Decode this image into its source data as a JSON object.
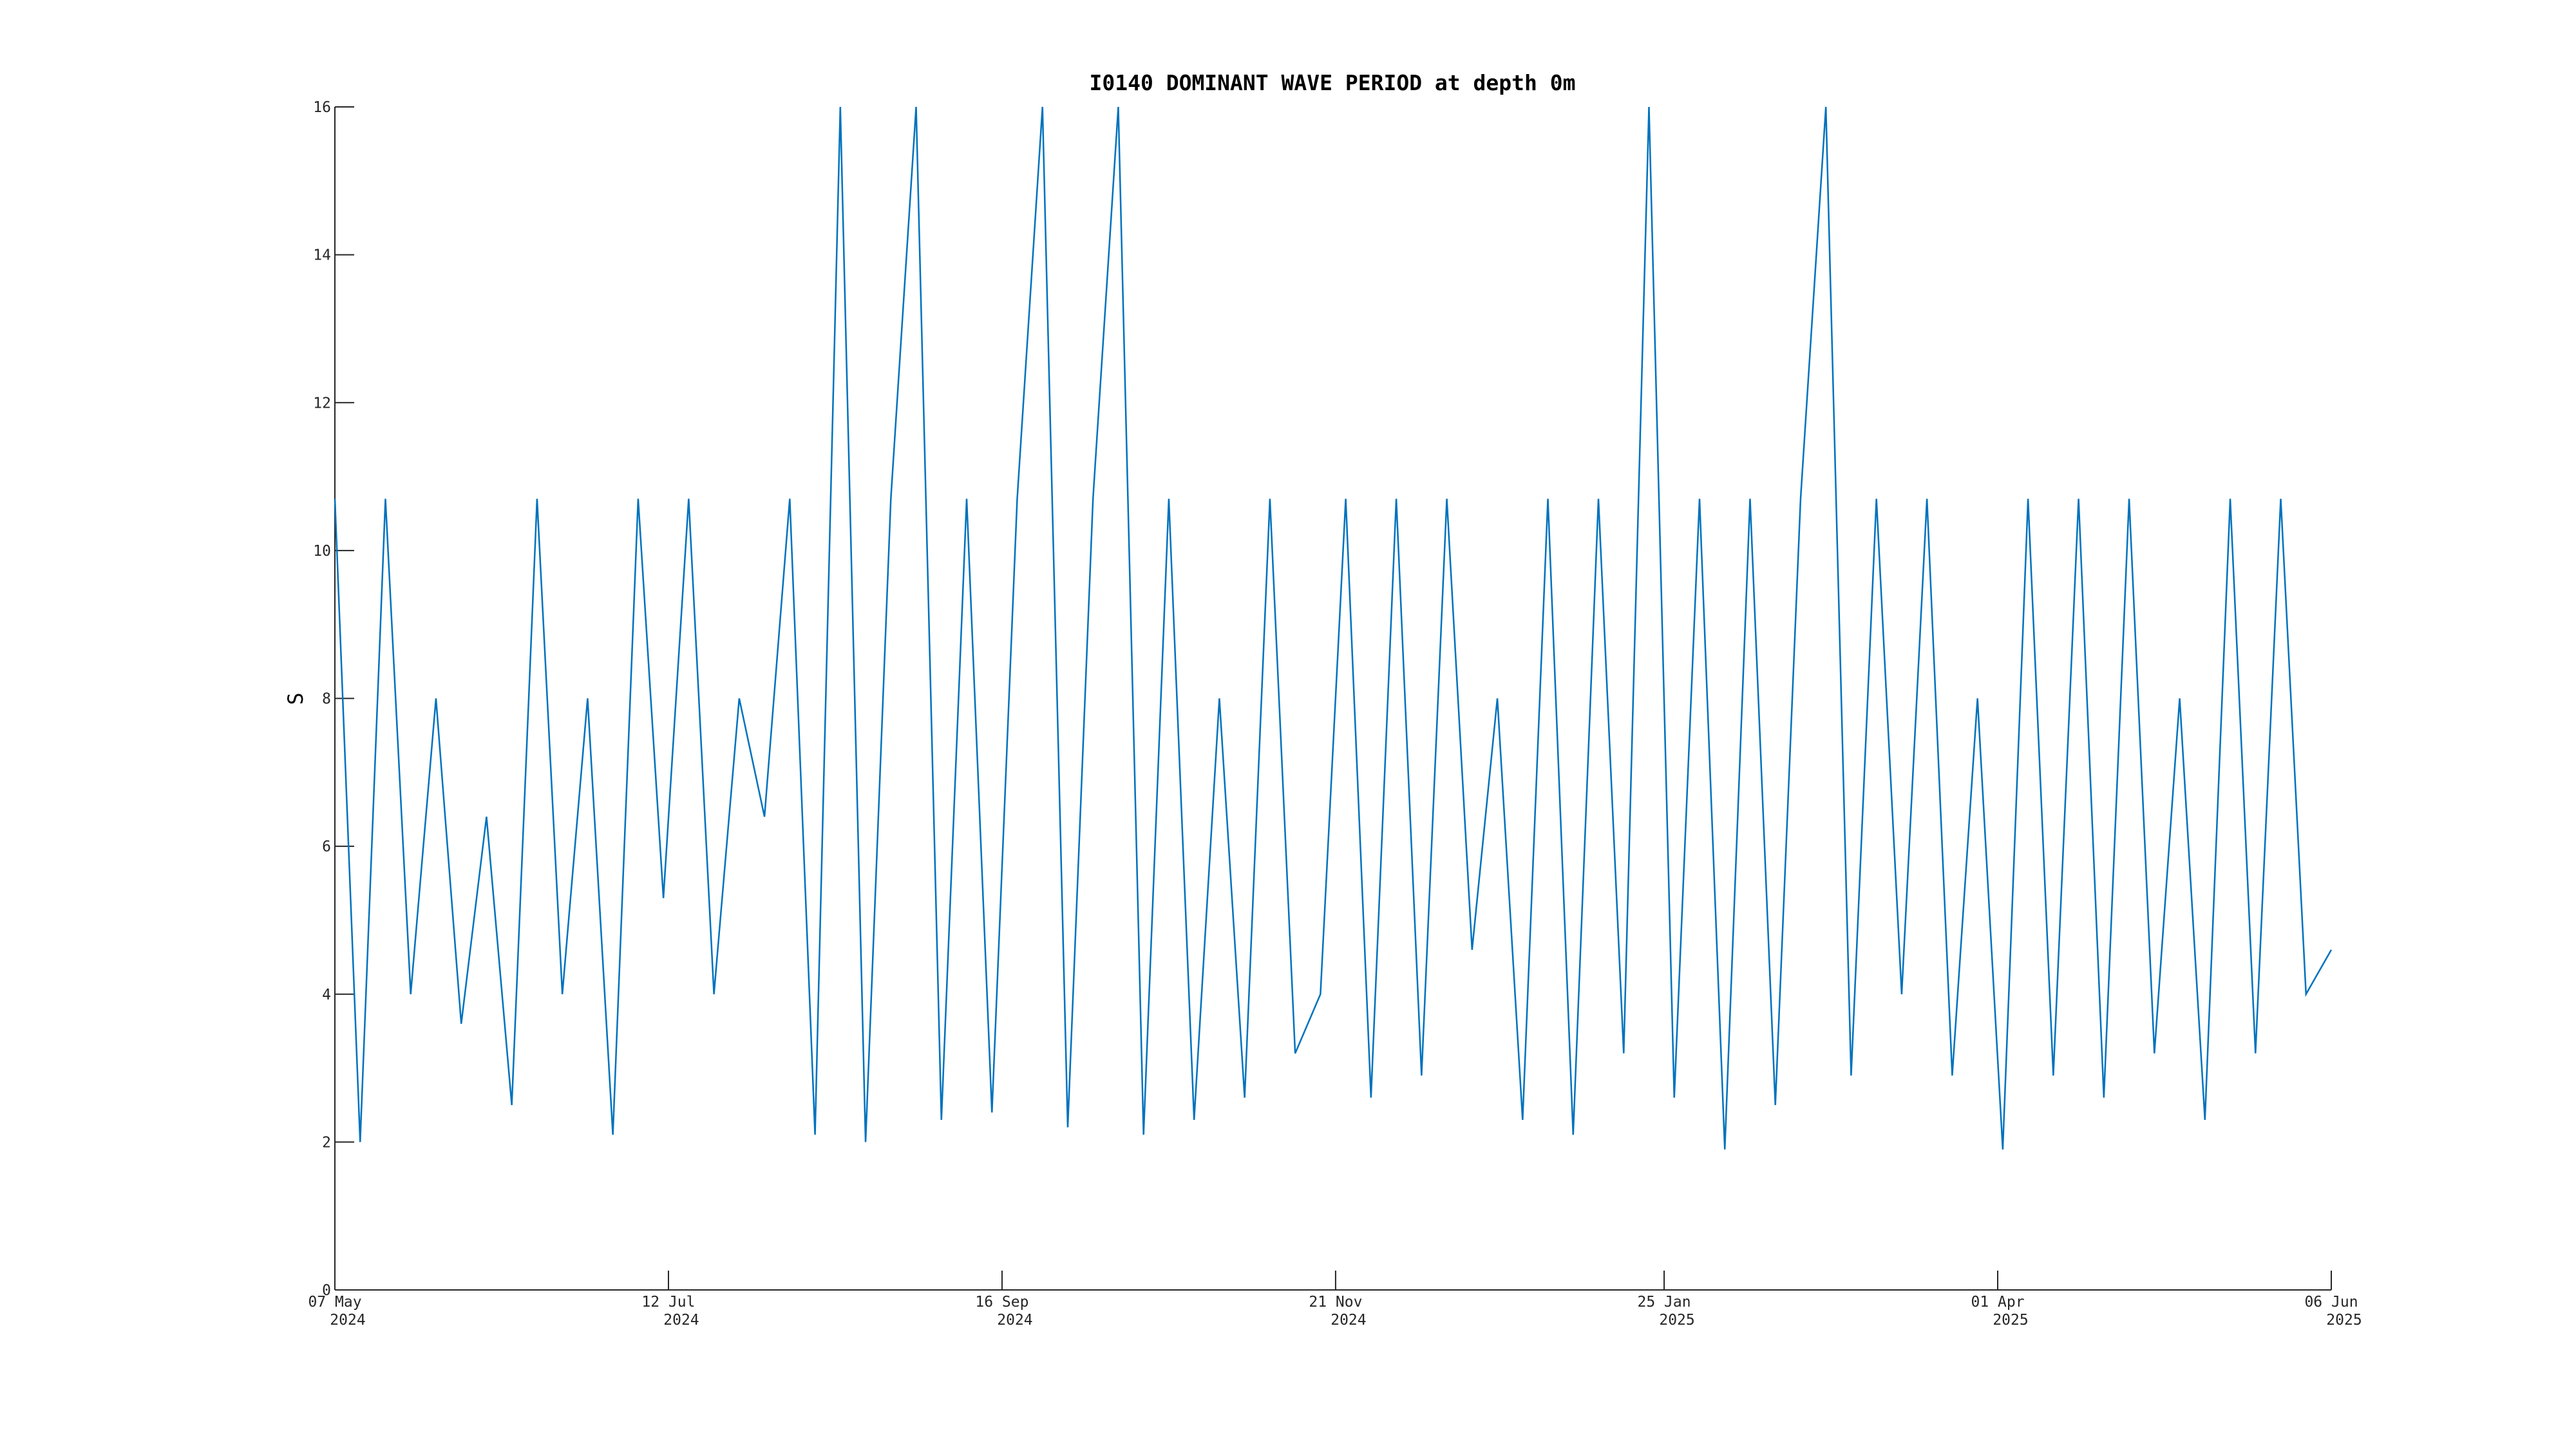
{
  "chart_data": {
    "type": "line",
    "title": "I0140 DOMINANT WAVE PERIOD at depth 0m",
    "ylabel": "S",
    "x": [
      "2024-05-07",
      "2024-05-12",
      "2024-05-17",
      "2024-05-22",
      "2024-05-27",
      "2024-06-01",
      "2024-06-06",
      "2024-06-11",
      "2024-06-16",
      "2024-06-21",
      "2024-06-26",
      "2024-07-01",
      "2024-07-06",
      "2024-07-11",
      "2024-07-16",
      "2024-07-21",
      "2024-07-26",
      "2024-07-31",
      "2024-08-05",
      "2024-08-10",
      "2024-08-15",
      "2024-08-20",
      "2024-08-25",
      "2024-08-30",
      "2024-09-04",
      "2024-09-09",
      "2024-09-14",
      "2024-09-19",
      "2024-09-24",
      "2024-09-29",
      "2024-10-04",
      "2024-10-09",
      "2024-10-14",
      "2024-10-19",
      "2024-10-24",
      "2024-10-29",
      "2024-11-03",
      "2024-11-08",
      "2024-11-13",
      "2024-11-18",
      "2024-11-23",
      "2024-11-28",
      "2024-12-03",
      "2024-12-08",
      "2024-12-13",
      "2024-12-18",
      "2024-12-23",
      "2024-12-28",
      "2025-01-02",
      "2025-01-07",
      "2025-01-12",
      "2025-01-17",
      "2025-01-22",
      "2025-01-27",
      "2025-02-01",
      "2025-02-06",
      "2025-02-11",
      "2025-02-16",
      "2025-02-21",
      "2025-02-26",
      "2025-03-03",
      "2025-03-08",
      "2025-03-13",
      "2025-03-18",
      "2025-03-23",
      "2025-03-28",
      "2025-04-02",
      "2025-04-07",
      "2025-04-12",
      "2025-04-17",
      "2025-04-22",
      "2025-04-27",
      "2025-05-02",
      "2025-05-07",
      "2025-05-12",
      "2025-05-17",
      "2025-05-22",
      "2025-05-27",
      "2025-06-01",
      "2025-06-06"
    ],
    "series": [
      {
        "name": "I0140",
        "color": "#0072bd",
        "values": [
          10.7,
          2,
          10.7,
          4,
          8,
          3.6,
          6.4,
          2.5,
          10.7,
          4,
          8,
          2.1,
          10.7,
          5.3,
          10.7,
          4,
          8,
          6.4,
          10.7,
          2.1,
          16,
          2,
          10.7,
          16,
          2.3,
          10.7,
          2.4,
          10.7,
          16,
          2.2,
          10.7,
          16,
          2.1,
          10.7,
          2.3,
          8,
          2.6,
          10.7,
          3.2,
          4,
          10.7,
          2.6,
          10.7,
          2.9,
          10.7,
          4.6,
          8,
          2.3,
          10.7,
          2.1,
          10.7,
          3.2,
          16,
          2.6,
          10.7,
          1.9,
          10.7,
          2.5,
          10.7,
          16,
          2.9,
          10.7,
          4,
          10.7,
          2.9,
          8,
          1.9,
          10.7,
          2.9,
          10.7,
          2.6,
          10.7,
          3.2,
          8,
          2.3,
          10.7,
          3.2,
          10.7,
          4,
          4.6
        ]
      }
    ],
    "xlim": [
      "2024-05-07",
      "2025-06-06"
    ],
    "xticks": [
      {
        "value": "2024-05-07",
        "label": "07 May 2024"
      },
      {
        "value": "2024-07-12",
        "label": "12 Jul 2024"
      },
      {
        "value": "2024-09-16",
        "label": "16 Sep 2024"
      },
      {
        "value": "2024-11-21",
        "label": "21 Nov 2024"
      },
      {
        "value": "2025-01-25",
        "label": "25 Jan 2025"
      },
      {
        "value": "2025-04-01",
        "label": "01 Apr 2025"
      },
      {
        "value": "2025-06-06",
        "label": "06 Jun 2025"
      }
    ],
    "ylim": [
      0,
      16
    ],
    "yticks": [
      0,
      2,
      4,
      6,
      8,
      10,
      12,
      14,
      16
    ],
    "grid": false
  }
}
